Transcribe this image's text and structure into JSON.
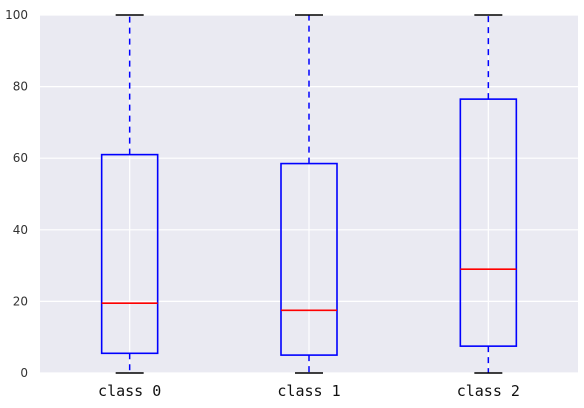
{
  "chart_data": {
    "type": "box",
    "title": "",
    "xlabel": "",
    "ylabel": "",
    "ylim": [
      0,
      100
    ],
    "yticks": [
      0,
      20,
      40,
      60,
      80,
      100
    ],
    "grid": true,
    "categories": [
      "class 0",
      "class 1",
      "class 2"
    ],
    "boxes": [
      {
        "whisker_low": 0,
        "q1": 5.5,
        "median": 19.5,
        "q3": 61,
        "whisker_high": 100
      },
      {
        "whisker_low": 0,
        "q1": 5,
        "median": 17.5,
        "q3": 58.5,
        "whisker_high": 100
      },
      {
        "whisker_low": 0,
        "q1": 7.5,
        "median": 29,
        "q3": 76.5,
        "whisker_high": 100
      }
    ],
    "colors": {
      "background": "#eaeaf2",
      "grid": "#ffffff",
      "box": "#0000ff",
      "median": "#ff0000"
    }
  }
}
